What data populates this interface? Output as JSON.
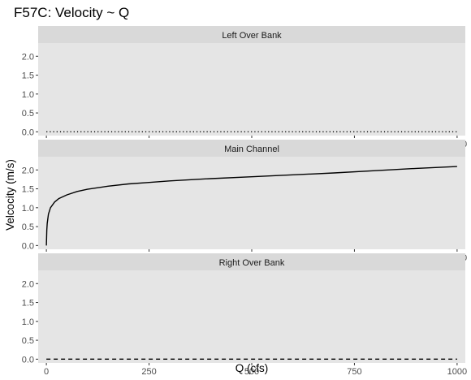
{
  "chart_data": {
    "type": "line",
    "title": "F57C: Velocity ~ Q",
    "xlabel": "Q (cfs)",
    "ylabel": "Velcocity (m/s)",
    "xlim": [
      -20,
      1020
    ],
    "ylim": [
      -0.1,
      2.35
    ],
    "x_ticks": [
      0,
      250,
      500,
      750,
      1000
    ],
    "x_tick_labels": [
      "0",
      "250",
      "500",
      "750",
      "1000"
    ],
    "y_ticks": [
      0.0,
      0.5,
      1.0,
      1.5,
      2.0
    ],
    "y_tick_labels": [
      "0.0",
      "0.5",
      "1.0",
      "1.5",
      "2.0"
    ],
    "grid": false,
    "background": "#e5e5e5",
    "strip_background": "#d9d9d9",
    "line_color": "#000000",
    "facets": [
      {
        "label": "Left Over Bank",
        "line_style": "dotted",
        "x": [
          0,
          1000
        ],
        "y": [
          0.0,
          0.0
        ]
      },
      {
        "label": "Main Channel",
        "line_style": "solid",
        "x": [
          0,
          1,
          2,
          5,
          10,
          20,
          30,
          50,
          75,
          100,
          150,
          200,
          250,
          300,
          400,
          500,
          600,
          700,
          800,
          900,
          1000
        ],
        "y": [
          0.0,
          0.4,
          0.58,
          0.83,
          1.0,
          1.15,
          1.24,
          1.34,
          1.43,
          1.49,
          1.57,
          1.63,
          1.67,
          1.71,
          1.77,
          1.82,
          1.87,
          1.92,
          1.98,
          2.04,
          2.09
        ]
      },
      {
        "label": "Right Over Bank",
        "line_style": "dashed",
        "x": [
          0,
          1000
        ],
        "y": [
          0.0,
          0.0
        ]
      }
    ]
  }
}
